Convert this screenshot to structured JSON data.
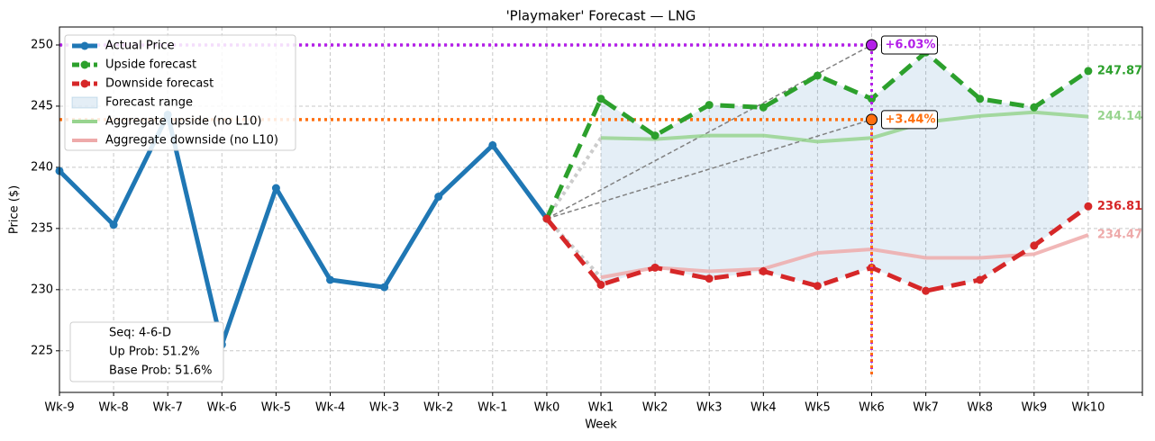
{
  "chart_data": {
    "type": "line",
    "title": "'Playmaker' Forecast — LNG",
    "xlabel": "Week",
    "ylabel": "Price ($)",
    "categories": [
      "Wk-9",
      "Wk-8",
      "Wk-7",
      "Wk-6",
      "Wk-5",
      "Wk-4",
      "Wk-3",
      "Wk-2",
      "Wk-1",
      "Wk0",
      "Wk1",
      "Wk2",
      "Wk3",
      "Wk4",
      "Wk5",
      "Wk6",
      "Wk7",
      "Wk8",
      "Wk9",
      "Wk10",
      null
    ],
    "ylim": [
      221.6,
      251.47
    ],
    "yticks": [
      225,
      230,
      235,
      240,
      245,
      250
    ],
    "grid": true,
    "legend": "upper left",
    "series": [
      {
        "name": "Actual Price",
        "color": "#1f77b4",
        "style": "solid",
        "values": [
          239.7,
          235.3,
          244.3,
          225.5,
          238.3,
          230.8,
          230.2,
          237.6,
          241.8,
          235.8,
          null,
          null,
          null,
          null,
          null,
          null,
          null,
          null,
          null,
          null,
          null
        ]
      },
      {
        "name": "Upside forecast",
        "color": "#2ca02c",
        "style": "dashed",
        "values": [
          null,
          null,
          null,
          null,
          null,
          null,
          null,
          null,
          null,
          235.8,
          245.6,
          242.6,
          245.1,
          244.9,
          247.5,
          245.6,
          249.4,
          245.6,
          244.9,
          247.87,
          null
        ]
      },
      {
        "name": "Downside forecast",
        "color": "#d62728",
        "style": "dashed",
        "values": [
          null,
          null,
          null,
          null,
          null,
          null,
          null,
          null,
          null,
          235.8,
          230.4,
          231.8,
          230.9,
          231.5,
          230.3,
          231.8,
          229.9,
          230.8,
          233.6,
          236.81,
          null
        ]
      },
      {
        "name": "Forecast range",
        "color": "#1f77b4",
        "style": "band"
      },
      {
        "name": "Aggregate upside (no L10)",
        "color": "#98d48f",
        "style": "thick",
        "values": [
          null,
          null,
          null,
          null,
          null,
          null,
          null,
          null,
          null,
          null,
          242.4,
          242.3,
          242.6,
          242.6,
          242.1,
          242.4,
          243.7,
          244.2,
          244.5,
          244.14,
          null
        ]
      },
      {
        "name": "Aggregate downside (no L10)",
        "color": "#eeaaaa",
        "style": "thick",
        "values": [
          null,
          null,
          null,
          null,
          null,
          null,
          null,
          null,
          null,
          null,
          231.0,
          231.8,
          231.5,
          231.7,
          233.0,
          233.3,
          232.6,
          232.6,
          232.9,
          234.47,
          null
        ]
      }
    ],
    "annotations": [
      {
        "label": "+6.03%",
        "x": "Wk6",
        "value": 250.0,
        "color": "#b31ee8"
      },
      {
        "label": "+3.44%",
        "x": "Wk6",
        "value": 243.9,
        "color": "#ff6f0e"
      }
    ],
    "info": [
      "Seq: 4-6-D",
      "Up Prob: 51.2%",
      "Base Prob: 51.6%"
    ]
  }
}
